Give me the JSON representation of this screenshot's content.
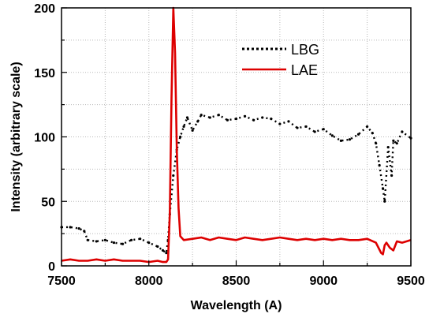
{
  "chart_data": {
    "type": "line",
    "xlabel": "Wavelength (A)",
    "ylabel": "Intensity (arbitrary scale)",
    "xlim": [
      7500,
      9500
    ],
    "ylim": [
      0,
      200
    ],
    "xticks": [
      7500,
      8000,
      8500,
      9000,
      9500
    ],
    "yticks": [
      0,
      50,
      100,
      150,
      200
    ],
    "grid": true,
    "legend_position": "top-center",
    "series": [
      {
        "name": "LBG",
        "color": "#000000",
        "style": "dotted-markers",
        "x": [
          7500,
          7550,
          7600,
          7630,
          7650,
          7700,
          7750,
          7800,
          7850,
          7900,
          7950,
          8000,
          8050,
          8080,
          8100,
          8110,
          8120,
          8140,
          8160,
          8180,
          8200,
          8220,
          8250,
          8280,
          8300,
          8350,
          8400,
          8450,
          8500,
          8550,
          8600,
          8650,
          8700,
          8750,
          8800,
          8850,
          8900,
          8950,
          9000,
          9050,
          9100,
          9150,
          9200,
          9250,
          9280,
          9300,
          9320,
          9340,
          9350,
          9370,
          9390,
          9400,
          9420,
          9450,
          9500
        ],
        "y": [
          30,
          30,
          29,
          27,
          20,
          19,
          20,
          18,
          17,
          20,
          21,
          18,
          15,
          12,
          10,
          20,
          40,
          70,
          90,
          100,
          108,
          115,
          105,
          112,
          117,
          115,
          117,
          113,
          114,
          116,
          113,
          115,
          114,
          110,
          112,
          107,
          108,
          104,
          106,
          101,
          97,
          98,
          102,
          108,
          103,
          95,
          78,
          60,
          50,
          92,
          70,
          97,
          95,
          104,
          99
        ]
      },
      {
        "name": "LAE",
        "color": "#dd0000",
        "style": "solid",
        "x": [
          7500,
          7550,
          7600,
          7650,
          7700,
          7750,
          7800,
          7850,
          7900,
          7950,
          8000,
          8050,
          8080,
          8100,
          8110,
          8120,
          8130,
          8140,
          8150,
          8160,
          8170,
          8180,
          8200,
          8250,
          8300,
          8350,
          8400,
          8450,
          8500,
          8550,
          8600,
          8650,
          8700,
          8750,
          8800,
          8850,
          8900,
          8950,
          9000,
          9050,
          9100,
          9150,
          9200,
          9250,
          9300,
          9330,
          9340,
          9350,
          9360,
          9380,
          9400,
          9420,
          9450,
          9500
        ],
        "y": [
          4,
          5,
          4,
          4,
          5,
          4,
          5,
          4,
          4,
          4,
          3,
          4,
          3,
          3,
          5,
          40,
          130,
          200,
          165,
          90,
          45,
          23,
          20,
          21,
          22,
          20,
          22,
          21,
          20,
          22,
          21,
          20,
          21,
          22,
          21,
          20,
          21,
          20,
          21,
          20,
          21,
          20,
          20,
          21,
          18,
          10,
          9,
          16,
          18,
          14,
          12,
          19,
          18,
          20
        ]
      }
    ]
  }
}
